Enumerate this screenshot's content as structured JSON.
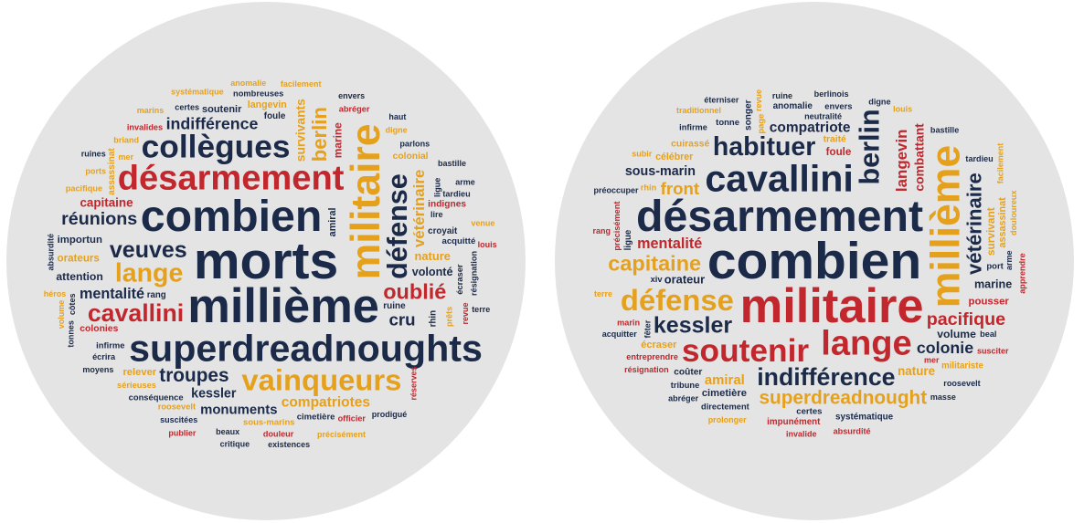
{
  "palette": {
    "navy": "#1b2a49",
    "gold": "#e6a11c",
    "red": "#c1272d"
  },
  "clouds": [
    {
      "words": [
        {
          "text": "morts",
          "color": "navy"
        },
        {
          "text": "millième",
          "color": "navy"
        },
        {
          "text": "combien",
          "color": "navy"
        },
        {
          "text": "militaire",
          "color": "gold"
        },
        {
          "text": "superdreadnoughts",
          "color": "navy"
        },
        {
          "text": "désarmement",
          "color": "red"
        },
        {
          "text": "collègues",
          "color": "navy"
        },
        {
          "text": "vainqueurs",
          "color": "gold"
        },
        {
          "text": "défense",
          "color": "navy"
        },
        {
          "text": "lange",
          "color": "gold"
        },
        {
          "text": "cavallini",
          "color": "red"
        },
        {
          "text": "veuves",
          "color": "navy"
        },
        {
          "text": "oublié",
          "color": "red"
        },
        {
          "text": "berlin",
          "color": "gold"
        },
        {
          "text": "troupes",
          "color": "navy"
        },
        {
          "text": "réunions",
          "color": "navy"
        },
        {
          "text": "cru",
          "color": "navy"
        },
        {
          "text": "indifférence",
          "color": "navy"
        },
        {
          "text": "vétérinaire",
          "color": "gold"
        },
        {
          "text": "mentalité",
          "color": "navy"
        },
        {
          "text": "compatriotes",
          "color": "gold"
        },
        {
          "text": "monuments",
          "color": "navy"
        },
        {
          "text": "kessler",
          "color": "navy"
        },
        {
          "text": "survivants",
          "color": "gold"
        },
        {
          "text": "capitaine",
          "color": "red"
        },
        {
          "text": "nature",
          "color": "gold"
        },
        {
          "text": "volonté",
          "color": "navy"
        },
        {
          "text": "attention",
          "color": "navy"
        },
        {
          "text": "marine",
          "color": "red"
        },
        {
          "text": "orateurs",
          "color": "gold"
        },
        {
          "text": "importun",
          "color": "navy"
        },
        {
          "text": "relever",
          "color": "gold"
        },
        {
          "text": "soutenir",
          "color": "navy"
        },
        {
          "text": "amiral",
          "color": "navy"
        },
        {
          "text": "langevin",
          "color": "gold"
        },
        {
          "text": "colonies",
          "color": "red"
        },
        {
          "text": "colonial",
          "color": "gold"
        },
        {
          "text": "indignes",
          "color": "red"
        },
        {
          "text": "assassinat",
          "color": "gold"
        },
        {
          "text": "ruine",
          "color": "navy"
        },
        {
          "text": "foule",
          "color": "navy"
        },
        {
          "text": "croyait",
          "color": "navy"
        },
        {
          "text": "rang",
          "color": "navy"
        },
        {
          "text": "rhin",
          "color": "navy"
        },
        {
          "text": "acquitté",
          "color": "navy"
        },
        {
          "text": "cimetière",
          "color": "navy"
        },
        {
          "text": "sous-marins",
          "color": "gold"
        },
        {
          "text": "conséquence",
          "color": "navy"
        },
        {
          "text": "écraser",
          "color": "navy"
        },
        {
          "text": "infirme",
          "color": "navy"
        },
        {
          "text": "roosevelt",
          "color": "gold"
        },
        {
          "text": "nombreuses",
          "color": "navy"
        },
        {
          "text": "sérieuses",
          "color": "gold"
        },
        {
          "text": "ligue",
          "color": "navy"
        },
        {
          "text": "écrira",
          "color": "navy"
        },
        {
          "text": "pacifique",
          "color": "gold"
        },
        {
          "text": "invalides",
          "color": "red"
        },
        {
          "text": "abréger",
          "color": "red"
        },
        {
          "text": "prêts",
          "color": "gold"
        },
        {
          "text": "briand",
          "color": "gold"
        },
        {
          "text": "certes",
          "color": "navy"
        },
        {
          "text": "lire",
          "color": "navy"
        },
        {
          "text": "parlons",
          "color": "navy"
        },
        {
          "text": "résignation",
          "color": "navy"
        },
        {
          "text": "tardieu",
          "color": "navy"
        },
        {
          "text": "ports",
          "color": "gold"
        },
        {
          "text": "douleur",
          "color": "red"
        },
        {
          "text": "officier",
          "color": "red"
        },
        {
          "text": "côtes",
          "color": "navy"
        },
        {
          "text": "beaux",
          "color": "navy"
        },
        {
          "text": "suscitées",
          "color": "navy"
        },
        {
          "text": "moyens",
          "color": "navy"
        },
        {
          "text": "ruines",
          "color": "navy"
        },
        {
          "text": "revue",
          "color": "red"
        },
        {
          "text": "marins",
          "color": "gold"
        },
        {
          "text": "systématique",
          "color": "gold"
        },
        {
          "text": "anomalie",
          "color": "gold"
        },
        {
          "text": "héros",
          "color": "gold"
        },
        {
          "text": "réserves",
          "color": "red"
        },
        {
          "text": "facilement",
          "color": "gold"
        },
        {
          "text": "digne",
          "color": "gold"
        },
        {
          "text": "mer",
          "color": "gold"
        },
        {
          "text": "envers",
          "color": "navy"
        },
        {
          "text": "tonnes",
          "color": "navy"
        },
        {
          "text": "haut",
          "color": "navy"
        },
        {
          "text": "bastille",
          "color": "navy"
        },
        {
          "text": "arme",
          "color": "navy"
        },
        {
          "text": "précisément",
          "color": "gold"
        },
        {
          "text": "volume",
          "color": "gold"
        },
        {
          "text": "venue",
          "color": "gold"
        },
        {
          "text": "louis",
          "color": "red"
        },
        {
          "text": "terre",
          "color": "navy"
        },
        {
          "text": "prodigué",
          "color": "navy"
        },
        {
          "text": "absurdité",
          "color": "navy"
        },
        {
          "text": "existences",
          "color": "navy"
        },
        {
          "text": "critique",
          "color": "navy"
        },
        {
          "text": "publier",
          "color": "red"
        }
      ]
    },
    {
      "words": [
        {
          "text": "combien",
          "color": "navy"
        },
        {
          "text": "militaire",
          "color": "red"
        },
        {
          "text": "désarmement",
          "color": "navy"
        },
        {
          "text": "millième",
          "color": "gold"
        },
        {
          "text": "cavallini",
          "color": "navy"
        },
        {
          "text": "lange",
          "color": "red"
        },
        {
          "text": "soutenir",
          "color": "red"
        },
        {
          "text": "défense",
          "color": "gold"
        },
        {
          "text": "berlin",
          "color": "navy"
        },
        {
          "text": "habituer",
          "color": "navy"
        },
        {
          "text": "indifférence",
          "color": "navy"
        },
        {
          "text": "kessler",
          "color": "navy"
        },
        {
          "text": "capitaine",
          "color": "gold"
        },
        {
          "text": "vétérinaire",
          "color": "navy"
        },
        {
          "text": "superdreadnought",
          "color": "gold"
        },
        {
          "text": "pacifique",
          "color": "red"
        },
        {
          "text": "front",
          "color": "gold"
        },
        {
          "text": "colonie",
          "color": "navy"
        },
        {
          "text": "langevin",
          "color": "red"
        },
        {
          "text": "mentalité",
          "color": "red"
        },
        {
          "text": "compatriote",
          "color": "navy"
        },
        {
          "text": "amiral",
          "color": "gold"
        },
        {
          "text": "sous-marin",
          "color": "navy"
        },
        {
          "text": "combattant",
          "color": "red"
        },
        {
          "text": "nature",
          "color": "gold"
        },
        {
          "text": "orateur",
          "color": "navy"
        },
        {
          "text": "marine",
          "color": "navy"
        },
        {
          "text": "volume",
          "color": "navy"
        },
        {
          "text": "survivant",
          "color": "gold"
        },
        {
          "text": "foule",
          "color": "red"
        },
        {
          "text": "pousser",
          "color": "red"
        },
        {
          "text": "cimetière",
          "color": "navy"
        },
        {
          "text": "écraser",
          "color": "gold"
        },
        {
          "text": "assassinat",
          "color": "gold"
        },
        {
          "text": "célébrer",
          "color": "gold"
        },
        {
          "text": "cuirassé",
          "color": "gold"
        },
        {
          "text": "traité",
          "color": "gold"
        },
        {
          "text": "coûter",
          "color": "navy"
        },
        {
          "text": "songer",
          "color": "navy"
        },
        {
          "text": "anomalie",
          "color": "navy"
        },
        {
          "text": "systématique",
          "color": "navy"
        },
        {
          "text": "impunément",
          "color": "red"
        },
        {
          "text": "militariste",
          "color": "gold"
        },
        {
          "text": "ligue",
          "color": "navy"
        },
        {
          "text": "certes",
          "color": "navy"
        },
        {
          "text": "port",
          "color": "navy"
        },
        {
          "text": "tonne",
          "color": "navy"
        },
        {
          "text": "envers",
          "color": "navy"
        },
        {
          "text": "page",
          "color": "gold"
        },
        {
          "text": "xiv",
          "color": "navy"
        },
        {
          "text": "rhin",
          "color": "gold"
        },
        {
          "text": "directement",
          "color": "navy"
        },
        {
          "text": "tribune",
          "color": "navy"
        },
        {
          "text": "précisément",
          "color": "red"
        },
        {
          "text": "entreprendre",
          "color": "red"
        },
        {
          "text": "beal",
          "color": "navy"
        },
        {
          "text": "marin",
          "color": "red"
        },
        {
          "text": "infirme",
          "color": "navy"
        },
        {
          "text": "fêter",
          "color": "navy"
        },
        {
          "text": "ruine",
          "color": "navy"
        },
        {
          "text": "berlinois",
          "color": "navy"
        },
        {
          "text": "digne",
          "color": "navy"
        },
        {
          "text": "neutralité",
          "color": "navy"
        },
        {
          "text": "douloureux",
          "color": "gold"
        },
        {
          "text": "roosevelt",
          "color": "navy"
        },
        {
          "text": "bastille",
          "color": "navy"
        },
        {
          "text": "tardieu",
          "color": "navy"
        },
        {
          "text": "absurdité",
          "color": "red"
        },
        {
          "text": "apprendre",
          "color": "red"
        },
        {
          "text": "susciter",
          "color": "red"
        },
        {
          "text": "invalide",
          "color": "red"
        },
        {
          "text": "prolonger",
          "color": "gold"
        },
        {
          "text": "résignation",
          "color": "red"
        },
        {
          "text": "arme",
          "color": "navy"
        },
        {
          "text": "masse",
          "color": "navy"
        },
        {
          "text": "acquitter",
          "color": "navy"
        },
        {
          "text": "abréger",
          "color": "navy"
        },
        {
          "text": "préoccuper",
          "color": "navy"
        },
        {
          "text": "revue",
          "color": "gold"
        },
        {
          "text": "louis",
          "color": "gold"
        },
        {
          "text": "terre",
          "color": "gold"
        },
        {
          "text": "rang",
          "color": "red"
        },
        {
          "text": "mer",
          "color": "red"
        },
        {
          "text": "facilement",
          "color": "gold"
        },
        {
          "text": "subir",
          "color": "gold"
        },
        {
          "text": "traditionnel",
          "color": "gold"
        },
        {
          "text": "éterniser",
          "color": "navy"
        }
      ]
    }
  ]
}
